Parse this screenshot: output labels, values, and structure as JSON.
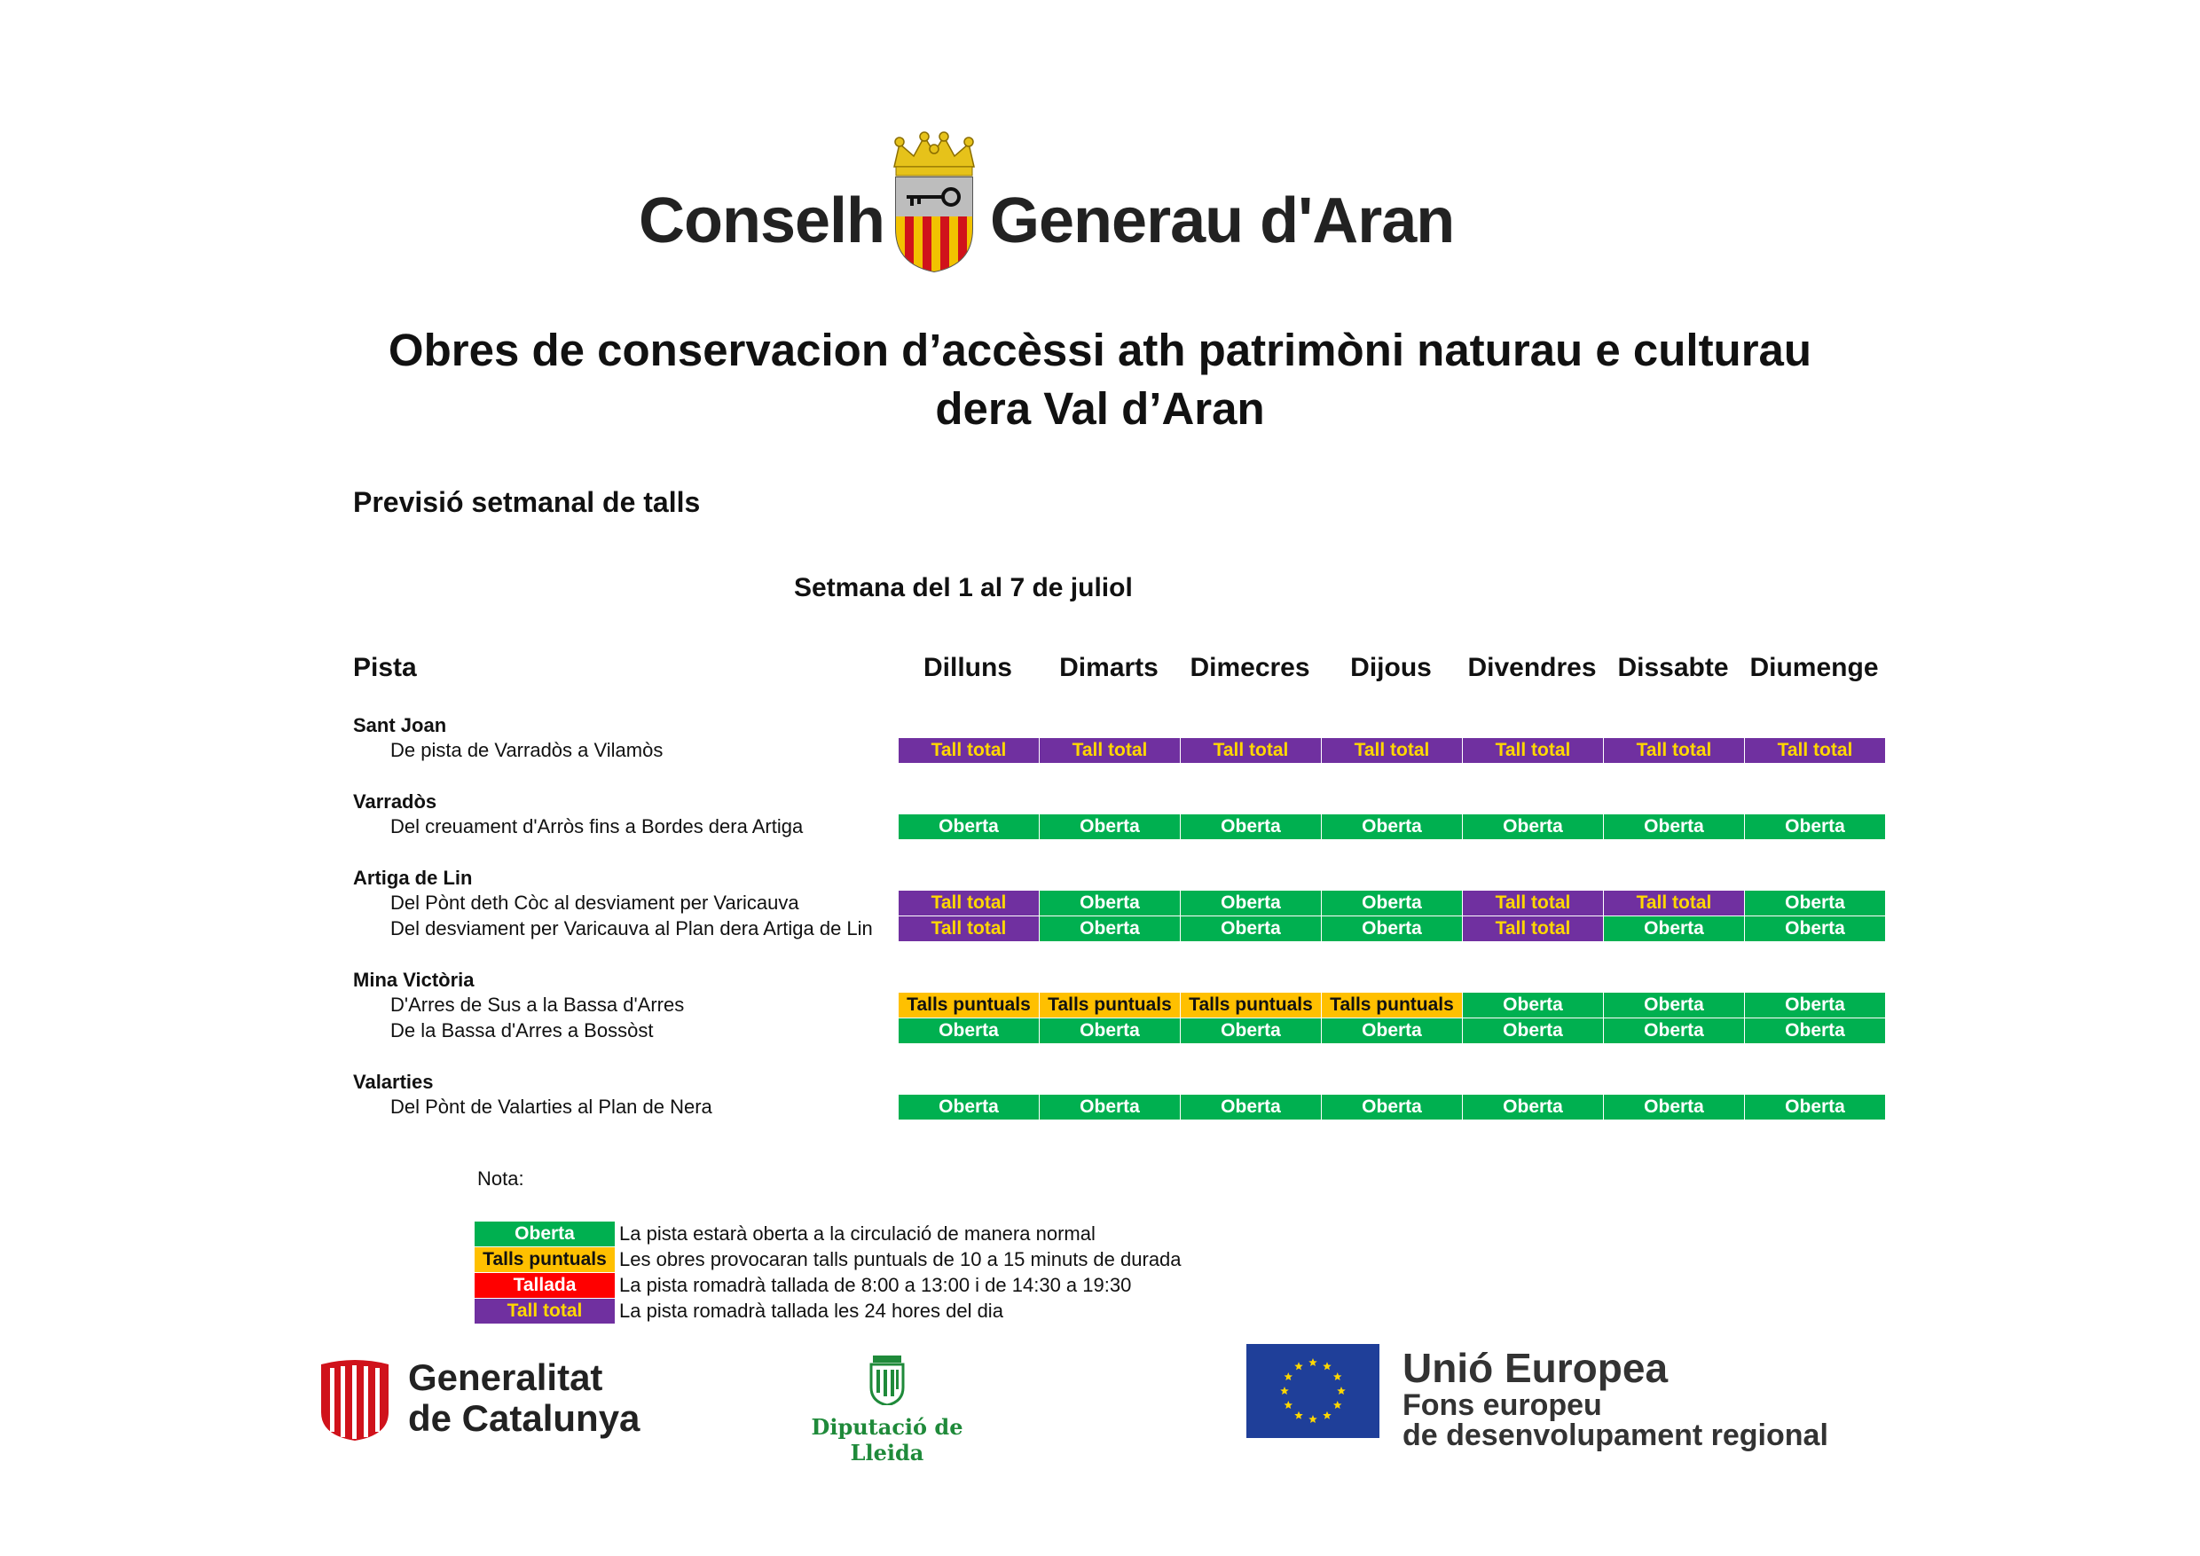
{
  "header": {
    "org_left": "Conselh",
    "org_right": "Generau d'Aran"
  },
  "document": {
    "title_line1": "Obres de conservacion d’accèssi ath patrimòni naturau e culturau",
    "title_line2": "dera Val d’Aran",
    "section_heading": "Previsió setmanal de talls",
    "week_label": "Setmana del 1 al 7 de juliol"
  },
  "table": {
    "pista_header": "Pista",
    "days": [
      "Dilluns",
      "Dimarts",
      "Dimecres",
      "Dijous",
      "Divendres",
      "Dissabte",
      "Diumenge"
    ],
    "status_labels": {
      "oberta": "Oberta",
      "tall_total": "Tall total",
      "talls_puntuals": "Talls puntuals",
      "tallada": "Tallada"
    },
    "groups": [
      {
        "name": "Sant Joan",
        "segments": [
          {
            "name": "De pista de Varradòs a Vilamòs",
            "status": [
              "tall_total",
              "tall_total",
              "tall_total",
              "tall_total",
              "tall_total",
              "tall_total",
              "tall_total"
            ]
          }
        ]
      },
      {
        "name": "Varradòs",
        "segments": [
          {
            "name": "Del creuament d'Arròs fins a Bordes dera Artiga",
            "status": [
              "oberta",
              "oberta",
              "oberta",
              "oberta",
              "oberta",
              "oberta",
              "oberta"
            ]
          }
        ]
      },
      {
        "name": "Artiga de Lin",
        "segments": [
          {
            "name": "Del Pònt deth Còc al desviament per Varicauva",
            "status": [
              "tall_total",
              "oberta",
              "oberta",
              "oberta",
              "tall_total",
              "tall_total",
              "oberta"
            ]
          },
          {
            "name": "Del desviament per Varicauva al Plan dera Artiga de Lin",
            "status": [
              "tall_total",
              "oberta",
              "oberta",
              "oberta",
              "tall_total",
              "oberta",
              "oberta"
            ]
          }
        ]
      },
      {
        "name": "Mina Victòria",
        "segments": [
          {
            "name": "D'Arres de Sus a la Bassa d'Arres",
            "status": [
              "talls_puntuals",
              "talls_puntuals",
              "talls_puntuals",
              "talls_puntuals",
              "oberta",
              "oberta",
              "oberta"
            ]
          },
          {
            "name": "De la Bassa d'Arres a Bossòst",
            "status": [
              "oberta",
              "oberta",
              "oberta",
              "oberta",
              "oberta",
              "oberta",
              "oberta"
            ]
          }
        ]
      },
      {
        "name": "Valarties",
        "segments": [
          {
            "name": "Del Pònt de Valarties al Plan de Nera",
            "status": [
              "oberta",
              "oberta",
              "oberta",
              "oberta",
              "oberta",
              "oberta",
              "oberta"
            ]
          }
        ]
      }
    ]
  },
  "legend": {
    "nota_label": "Nota:",
    "items": [
      {
        "status": "oberta",
        "label": "Oberta",
        "text": "La pista estarà oberta a la circulació de manera normal"
      },
      {
        "status": "talls_puntuals",
        "label": "Talls puntuals",
        "text": "Les obres provocaran talls puntuals de 10 a 15 minuts de durada"
      },
      {
        "status": "tallada",
        "label": "Tallada",
        "text": "La pista romadrà tallada de 8:00 a 13:00 i de 14:30 a 19:30"
      },
      {
        "status": "tall_total",
        "label": "Tall total",
        "text": "La pista romadrà tallada les 24 hores del dia"
      }
    ]
  },
  "colors": {
    "oberta": "#00b050",
    "tall_total": "#7030a0",
    "talls_puntuals": "#ffc000",
    "tallada": "#ff0000"
  },
  "footer": {
    "gencat_line1": "Generalitat",
    "gencat_line2": "de Catalunya",
    "diputacio": "Diputació de Lleida",
    "eu_line1": "Unió Europea",
    "eu_line2": "Fons europeu",
    "eu_line3": "de desenvolupament regional"
  }
}
